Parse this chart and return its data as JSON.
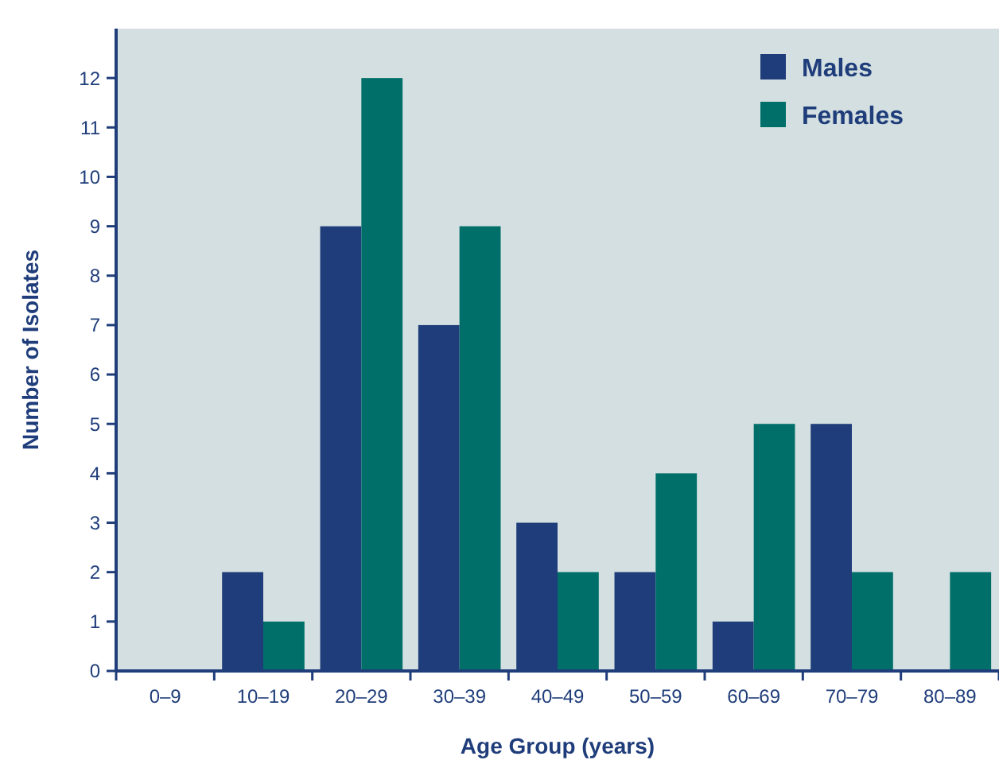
{
  "chart_data": {
    "type": "bar",
    "xlabel": "Age Group (years)",
    "ylabel": "Number of Isolates",
    "categories": [
      "0–9",
      "10–19",
      "20–29",
      "30–39",
      "40–49",
      "50–59",
      "60–69",
      "70–79",
      "80–89"
    ],
    "series": [
      {
        "name": "Males",
        "color": "#1f3d7a",
        "values": [
          0,
          2,
          9,
          7,
          3,
          2,
          1,
          5,
          0
        ]
      },
      {
        "name": "Females",
        "color": "#006f6a",
        "values": [
          0,
          1,
          12,
          9,
          2,
          4,
          5,
          2,
          2
        ]
      }
    ],
    "ylim": [
      0,
      13
    ],
    "yticks": [
      0,
      1,
      2,
      3,
      4,
      5,
      6,
      7,
      8,
      9,
      10,
      11,
      12
    ],
    "legend": "top right",
    "grid": false
  }
}
